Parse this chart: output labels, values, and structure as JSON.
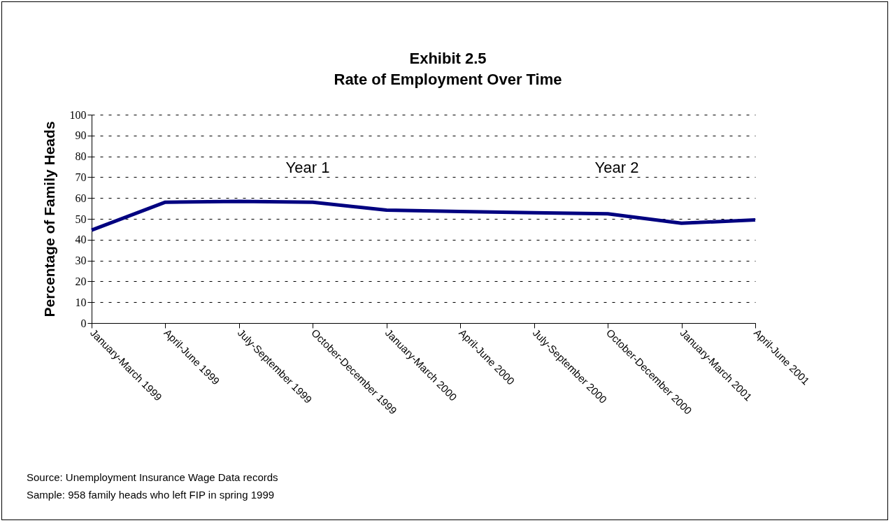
{
  "chart_data": {
    "type": "line",
    "title": "Exhibit 2.5\nRate of Employment Over Time",
    "ylabel": "Percentage of Family Heads",
    "categories": [
      "January-March 1999",
      "April-June 1999",
      "July-September 1999",
      "October-December 1999",
      "January-March 2000",
      "April-June 2000",
      "July-September 2000",
      "October-December 2000",
      "January-March 2001",
      "April-June 2001"
    ],
    "series": [
      {
        "color": "#000080",
        "values": [
          44.6,
          58,
          58.4,
          58,
          54.2,
          53.5,
          52.9,
          52.4,
          47.9,
          49.5
        ]
      }
    ],
    "ylim": [
      0,
      100
    ],
    "yticks": [
      0,
      10,
      20,
      30,
      40,
      50,
      60,
      70,
      80,
      90,
      100
    ],
    "grid": "y",
    "legend": false,
    "marker": "none",
    "line_style": "solid",
    "annotations": [
      "Year 1",
      "Year 2",
      "Source: Unemployment Insurance Wage Data records",
      "Sample: 958 family heads who left FIP in spring 1999"
    ]
  }
}
